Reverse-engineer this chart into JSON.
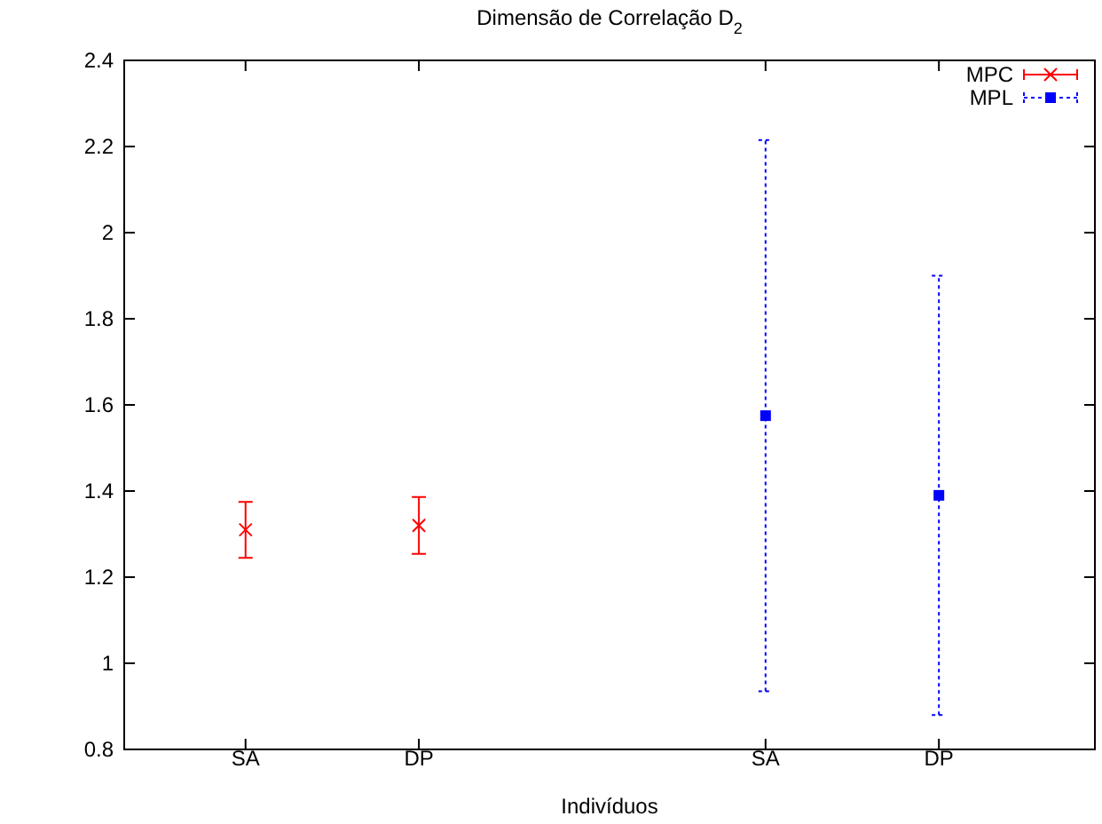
{
  "chart_data": {
    "type": "scatter",
    "title": "Dimensão de Correlação D$_{2}$",
    "xlabel": "Indivíduos",
    "categories": [
      "SA",
      "DP",
      null,
      "SA",
      "DP"
    ],
    "ylim": [
      0.8,
      2.4
    ],
    "yticks": [
      0.8,
      1,
      1.2,
      1.4,
      1.6,
      1.8,
      2,
      2.2,
      2.4
    ],
    "grid": false,
    "legend": "top right",
    "series": [
      {
        "name": "MPC",
        "color": "#ff0000",
        "values": [
          1.31,
          1.32,
          null,
          null,
          null
        ],
        "errors": [
          0.065,
          0.066,
          null,
          null,
          null
        ],
        "marker": "cross",
        "line_style": "solid"
      },
      {
        "name": "MPL",
        "color": "#0000ff",
        "values": [
          null,
          null,
          null,
          1.575,
          1.39
        ],
        "errors": [
          null,
          null,
          null,
          0.64,
          0.51
        ],
        "marker": "square",
        "line_style": "dotted"
      }
    ]
  }
}
